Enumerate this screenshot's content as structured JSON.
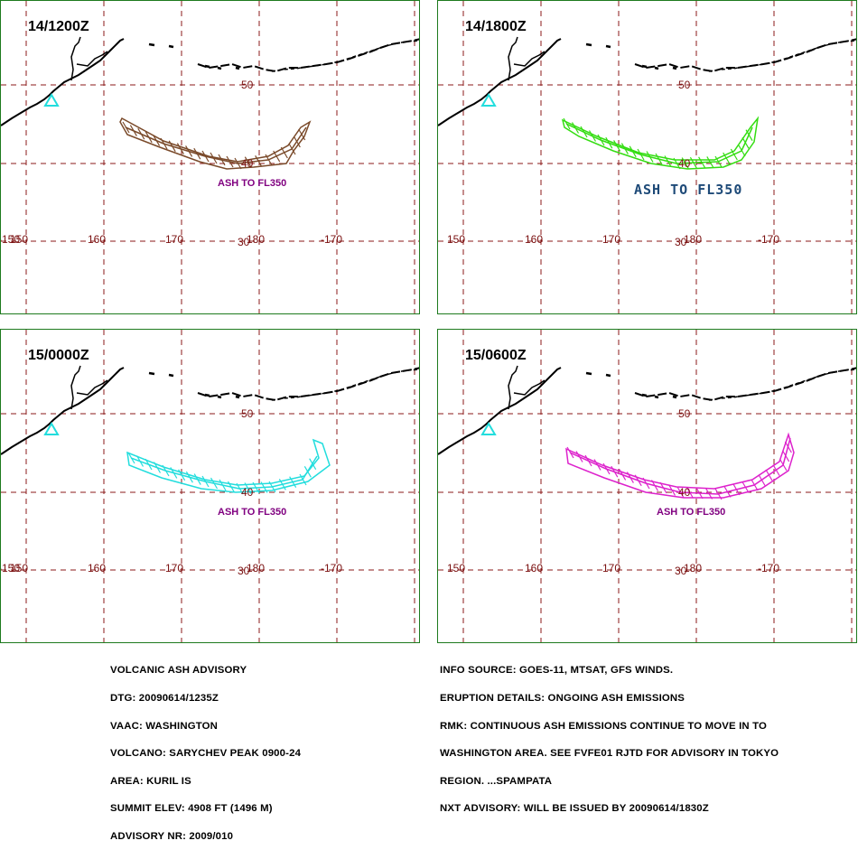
{
  "panels": [
    {
      "title": "14/1200Z",
      "ash_label": "ASH TO FL350",
      "color": "#7a4a2a",
      "label_style": "normal"
    },
    {
      "title": "14/1800Z",
      "ash_label": "ASH TO FL350",
      "color": "#33dd11",
      "label_style": "big"
    },
    {
      "title": "15/0000Z",
      "ash_label": "ASH TO FL350",
      "color": "#22dddd",
      "label_style": "normal"
    },
    {
      "title": "15/0600Z",
      "ash_label": "ASH TO FL350",
      "color": "#dd22cc",
      "label_style": "normal"
    }
  ],
  "map_labels": {
    "lat_50": "50",
    "lat_40": "40",
    "lat_30": "30",
    "lon_150": "150",
    "lon_160": "160",
    "lon_170": "170",
    "lon_180": "180",
    "lon_m170": "-170",
    "lon_w150": "-150"
  },
  "advisory_left": [
    "VOLCANIC ASH ADVISORY",
    "DTG: 20090614/1235Z",
    "VAAC: WASHINGTON",
    "VOLCANO: SARYCHEV PEAK 0900-24",
    "AREA: KURIL IS",
    "SUMMIT ELEV: 4908 FT (1496 M)",
    "ADVISORY NR: 2009/010"
  ],
  "advisory_right": [
    "INFO SOURCE: GOES-11, MTSAT, GFS WINDS.",
    "ERUPTION DETAILS: ONGOING ASH EMISSIONS",
    "RMK: CONTINUOUS ASH EMISSIONS CONTINUE TO MOVE IN TO",
    "WASHINGTON AREA. SEE FVFE01 RJTD FOR ADVISORY IN TOKYO",
    "REGION. ...SPAMPATA",
    "NXT ADVISORY: WILL BE ISSUED BY 20090614/1830Z"
  ],
  "colors": {
    "border": "#1e7a1e",
    "grid": "#8b1a1a",
    "coast": "#000000",
    "volcano_marker": "#22dddd"
  },
  "icons": {
    "volcano_marker": "triangle-icon"
  }
}
